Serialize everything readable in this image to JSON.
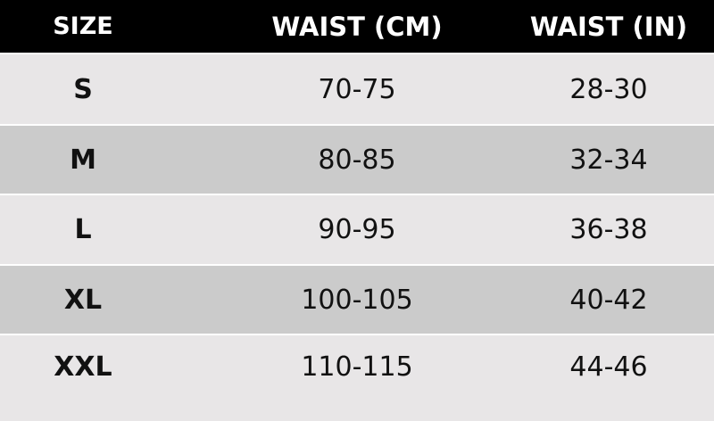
{
  "headers": [
    "SIZE",
    "WAIST (CM)",
    "WAIST (IN)"
  ],
  "rows": [
    {
      "size": "S",
      "cm": "70-75",
      "in": "28-30"
    },
    {
      "size": "M",
      "cm": "80-85",
      "in": "32-34"
    },
    {
      "size": "L",
      "cm": "90-95",
      "in": "36-38"
    },
    {
      "size": "XL",
      "cm": "100-105",
      "in": "40-42"
    },
    {
      "size": "XXL",
      "cm": "110-115",
      "in": "44-46"
    }
  ],
  "colors": {
    "header_bg": "#000000",
    "row_light": "#e8e6e7",
    "row_dark": "#cbcbcb"
  }
}
